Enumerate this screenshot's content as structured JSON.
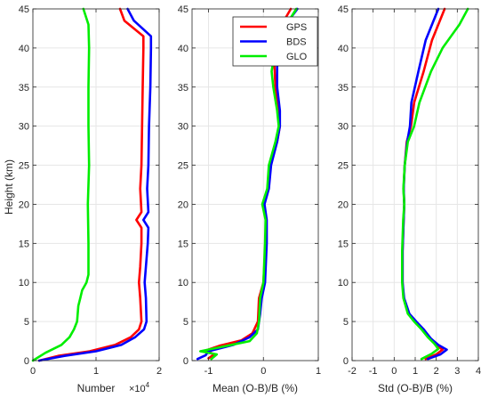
{
  "figure": {
    "ylabel": "Height (km)",
    "legend": {
      "placement": "top-right of middle panel",
      "entries": [
        "GPS",
        "BDS",
        "GLO"
      ]
    }
  },
  "colors": {
    "GPS": "#ff0000",
    "BDS": "#0000ff",
    "GLO": "#00ee00",
    "axis": "#262626",
    "grid": "#e6e6e6"
  },
  "chart_data": [
    {
      "type": "line",
      "panel": "count",
      "xlabel": "Number",
      "xexponent_base": "×10",
      "xexponent_power": "4",
      "xlim": [
        0,
        2
      ],
      "ylim": [
        0,
        45
      ],
      "xticks": [
        0,
        1,
        2
      ],
      "xticklabels": [
        "0",
        "1",
        "2"
      ],
      "yticks": [
        0,
        5,
        10,
        15,
        20,
        25,
        30,
        35,
        40,
        45
      ],
      "yticklabels": [
        "0",
        "5",
        "10",
        "15",
        "20",
        "25",
        "30",
        "35",
        "40",
        "45"
      ],
      "grid": true,
      "series": [
        {
          "name": "GPS",
          "color": "#ff0000",
          "points": [
            [
              0.1,
              0
            ],
            [
              0.4,
              0.6
            ],
            [
              0.9,
              1.2
            ],
            [
              1.3,
              2.0
            ],
            [
              1.55,
              3.0
            ],
            [
              1.68,
              4.0
            ],
            [
              1.72,
              5.0
            ],
            [
              1.7,
              8.0
            ],
            [
              1.68,
              10.0
            ],
            [
              1.7,
              12.0
            ],
            [
              1.72,
              15.0
            ],
            [
              1.72,
              17.0
            ],
            [
              1.64,
              18.0
            ],
            [
              1.72,
              19.0
            ],
            [
              1.7,
              22.0
            ],
            [
              1.72,
              25.0
            ],
            [
              1.73,
              30.0
            ],
            [
              1.74,
              35.0
            ],
            [
              1.75,
              40.0
            ],
            [
              1.75,
              41.5
            ],
            [
              1.45,
              43.5
            ],
            [
              1.38,
              45.0
            ]
          ]
        },
        {
          "name": "BDS",
          "color": "#0000ff",
          "points": [
            [
              0.1,
              0
            ],
            [
              0.5,
              0.6
            ],
            [
              1.0,
              1.2
            ],
            [
              1.4,
              2.0
            ],
            [
              1.62,
              3.0
            ],
            [
              1.76,
              4.0
            ],
            [
              1.8,
              5.0
            ],
            [
              1.79,
              8.0
            ],
            [
              1.77,
              10.0
            ],
            [
              1.79,
              12.0
            ],
            [
              1.82,
              15.0
            ],
            [
              1.83,
              17.0
            ],
            [
              1.75,
              18.0
            ],
            [
              1.83,
              19.0
            ],
            [
              1.81,
              22.0
            ],
            [
              1.83,
              25.0
            ],
            [
              1.84,
              30.0
            ],
            [
              1.86,
              35.0
            ],
            [
              1.87,
              40.0
            ],
            [
              1.87,
              41.5
            ],
            [
              1.6,
              43.5
            ],
            [
              1.5,
              45.0
            ]
          ]
        },
        {
          "name": "GLO",
          "color": "#00ee00",
          "points": [
            [
              0.0,
              0
            ],
            [
              0.2,
              1.0
            ],
            [
              0.45,
              2.0
            ],
            [
              0.58,
              3.0
            ],
            [
              0.65,
              4.0
            ],
            [
              0.7,
              5.0
            ],
            [
              0.72,
              7.0
            ],
            [
              0.75,
              8.0
            ],
            [
              0.78,
              9.0
            ],
            [
              0.85,
              10.0
            ],
            [
              0.88,
              11.0
            ],
            [
              0.88,
              15.0
            ],
            [
              0.87,
              20.0
            ],
            [
              0.89,
              25.0
            ],
            [
              0.88,
              30.0
            ],
            [
              0.88,
              35.0
            ],
            [
              0.89,
              40.0
            ],
            [
              0.88,
              43.0
            ],
            [
              0.8,
              45.0
            ]
          ]
        }
      ]
    },
    {
      "type": "line",
      "panel": "mean",
      "xlabel": "Mean (O-B)/B (%)",
      "xlim": [
        -1.3,
        1
      ],
      "ylim": [
        0,
        45
      ],
      "xticks": [
        -1,
        0,
        1
      ],
      "xticklabels": [
        "-1",
        "0",
        "1"
      ],
      "yticks": [
        0,
        5,
        10,
        15,
        20,
        25,
        30,
        35,
        40,
        45
      ],
      "yticklabels": [
        "0",
        "5",
        "10",
        "15",
        "20",
        "25",
        "30",
        "35",
        "40",
        "45"
      ],
      "grid": true,
      "series": [
        {
          "name": "GPS",
          "color": "#ff0000",
          "points": [
            [
              -1.0,
              0.3
            ],
            [
              -0.9,
              0.8
            ],
            [
              -1.05,
              1.3
            ],
            [
              -0.8,
              1.9
            ],
            [
              -0.4,
              2.6
            ],
            [
              -0.2,
              3.5
            ],
            [
              -0.1,
              5.0
            ],
            [
              -0.08,
              8.0
            ],
            [
              0.0,
              10.0
            ],
            [
              0.04,
              15.0
            ],
            [
              0.05,
              18.0
            ],
            [
              0.0,
              20.0
            ],
            [
              0.08,
              22.0
            ],
            [
              0.12,
              25.0
            ],
            [
              0.25,
              28.0
            ],
            [
              0.3,
              30.0
            ],
            [
              0.28,
              32.0
            ],
            [
              0.22,
              35.0
            ],
            [
              0.2,
              38.0
            ],
            [
              0.25,
              42.0
            ],
            [
              0.5,
              45.0
            ]
          ]
        },
        {
          "name": "BDS",
          "color": "#0000ff",
          "points": [
            [
              -1.2,
              0.2
            ],
            [
              -1.05,
              0.7
            ],
            [
              -1.0,
              1.2
            ],
            [
              -0.55,
              2.0
            ],
            [
              -0.25,
              3.0
            ],
            [
              -0.1,
              4.0
            ],
            [
              -0.06,
              6.0
            ],
            [
              -0.03,
              8.0
            ],
            [
              0.03,
              10.0
            ],
            [
              0.06,
              15.0
            ],
            [
              0.06,
              18.0
            ],
            [
              0.02,
              20.0
            ],
            [
              0.1,
              22.0
            ],
            [
              0.14,
              25.0
            ],
            [
              0.25,
              28.0
            ],
            [
              0.3,
              30.0
            ],
            [
              0.3,
              32.0
            ],
            [
              0.25,
              35.0
            ],
            [
              0.25,
              38.0
            ],
            [
              0.3,
              42.0
            ],
            [
              0.62,
              45.0
            ]
          ]
        },
        {
          "name": "GLO",
          "color": "#00ee00",
          "points": [
            [
              -0.95,
              0.2
            ],
            [
              -0.85,
              0.8
            ],
            [
              -1.15,
              1.2
            ],
            [
              -0.8,
              1.7
            ],
            [
              -0.25,
              2.5
            ],
            [
              -0.12,
              3.5
            ],
            [
              -0.08,
              5.0
            ],
            [
              -0.06,
              8.0
            ],
            [
              0.0,
              10.0
            ],
            [
              0.03,
              15.0
            ],
            [
              0.04,
              18.0
            ],
            [
              -0.02,
              20.0
            ],
            [
              0.07,
              22.0
            ],
            [
              0.1,
              25.0
            ],
            [
              0.22,
              28.0
            ],
            [
              0.28,
              30.0
            ],
            [
              0.25,
              32.0
            ],
            [
              0.18,
              35.0
            ],
            [
              0.15,
              37.0
            ],
            [
              0.22,
              40.0
            ],
            [
              0.42,
              43.0
            ],
            [
              0.6,
              45.0
            ]
          ]
        }
      ]
    },
    {
      "type": "line",
      "panel": "std",
      "xlabel": "Std (O-B)/B (%)",
      "xlim": [
        -2,
        4
      ],
      "ylim": [
        0,
        45
      ],
      "xticks": [
        -2,
        -1,
        0,
        1,
        2,
        3,
        4
      ],
      "xticklabels": [
        "-2",
        "-1",
        "0",
        "1",
        "2",
        "3",
        "4"
      ],
      "yticks": [
        0,
        5,
        10,
        15,
        20,
        25,
        30,
        35,
        40,
        45
      ],
      "yticklabels": [
        "0",
        "5",
        "10",
        "15",
        "20",
        "25",
        "30",
        "35",
        "40",
        "45"
      ],
      "grid": true,
      "series": [
        {
          "name": "GPS",
          "color": "#ff0000",
          "points": [
            [
              1.5,
              0.2
            ],
            [
              2.0,
              0.8
            ],
            [
              2.3,
              1.4
            ],
            [
              2.0,
              2.0
            ],
            [
              1.7,
              2.8
            ],
            [
              1.4,
              4.0
            ],
            [
              1.0,
              5.0
            ],
            [
              0.7,
              6.0
            ],
            [
              0.45,
              8.0
            ],
            [
              0.4,
              10.0
            ],
            [
              0.4,
              14.0
            ],
            [
              0.45,
              18.0
            ],
            [
              0.48,
              20.0
            ],
            [
              0.45,
              22.0
            ],
            [
              0.5,
              25.0
            ],
            [
              0.6,
              28.0
            ],
            [
              0.8,
              30.0
            ],
            [
              0.95,
              33.0
            ],
            [
              1.4,
              37.0
            ],
            [
              1.8,
              41.0
            ],
            [
              2.4,
              45.0
            ]
          ]
        },
        {
          "name": "BDS",
          "color": "#0000ff",
          "points": [
            [
              1.6,
              0.2
            ],
            [
              2.2,
              0.8
            ],
            [
              2.5,
              1.4
            ],
            [
              2.1,
              2.0
            ],
            [
              1.75,
              2.8
            ],
            [
              1.4,
              4.0
            ],
            [
              1.05,
              5.0
            ],
            [
              0.72,
              6.0
            ],
            [
              0.47,
              8.0
            ],
            [
              0.4,
              10.0
            ],
            [
              0.4,
              14.0
            ],
            [
              0.45,
              18.0
            ],
            [
              0.48,
              20.0
            ],
            [
              0.45,
              22.0
            ],
            [
              0.5,
              25.0
            ],
            [
              0.62,
              28.0
            ],
            [
              0.75,
              30.0
            ],
            [
              0.82,
              33.0
            ],
            [
              1.15,
              37.0
            ],
            [
              1.5,
              41.0
            ],
            [
              2.1,
              45.0
            ]
          ]
        },
        {
          "name": "GLO",
          "color": "#00ee00",
          "points": [
            [
              1.3,
              0.2
            ],
            [
              1.8,
              0.9
            ],
            [
              2.1,
              1.5
            ],
            [
              1.9,
              2.2
            ],
            [
              1.6,
              3.0
            ],
            [
              1.3,
              4.0
            ],
            [
              0.95,
              5.0
            ],
            [
              0.65,
              6.0
            ],
            [
              0.44,
              8.0
            ],
            [
              0.38,
              10.0
            ],
            [
              0.38,
              14.0
            ],
            [
              0.43,
              18.0
            ],
            [
              0.48,
              20.0
            ],
            [
              0.44,
              22.0
            ],
            [
              0.5,
              25.0
            ],
            [
              0.65,
              28.0
            ],
            [
              0.95,
              30.0
            ],
            [
              1.2,
              33.0
            ],
            [
              1.75,
              37.0
            ],
            [
              2.3,
              40.0
            ],
            [
              3.1,
              43.0
            ],
            [
              3.5,
              45.0
            ]
          ]
        }
      ]
    }
  ]
}
